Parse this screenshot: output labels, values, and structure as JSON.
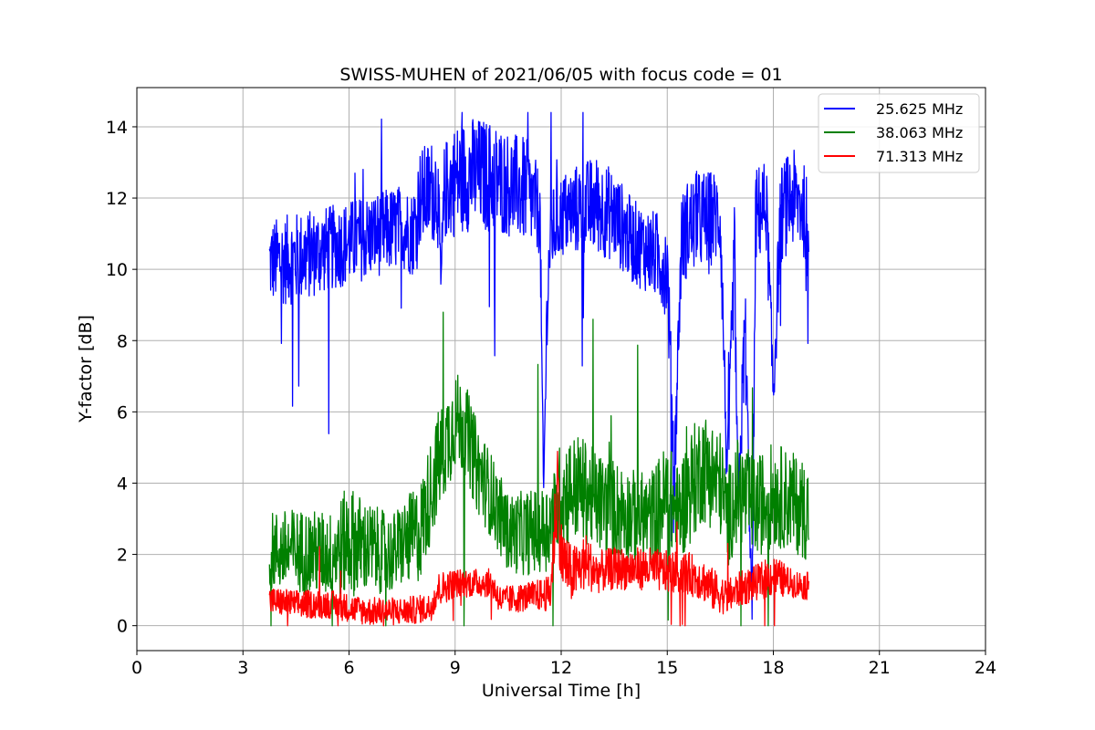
{
  "chart_data": {
    "type": "line",
    "title": "SWISS-MUHEN of 2021/06/05 with focus code = 01",
    "xlabel": "Universal Time [h]",
    "ylabel": "Y-factor [dB]",
    "xlim": [
      0,
      24
    ],
    "ylim": [
      -0.7,
      15.1
    ],
    "xticks": [
      0,
      3,
      6,
      9,
      12,
      15,
      18,
      21,
      24
    ],
    "yticks": [
      0,
      2,
      4,
      6,
      8,
      10,
      12,
      14
    ],
    "grid": true,
    "legend_position": "top-right",
    "series": [
      {
        "name": "25.625 MHz",
        "color": "#0000ff",
        "x": [
          3.75,
          4.5,
          5.5,
          6.5,
          7.5,
          7.8,
          8.0,
          8.5,
          8.6,
          8.7,
          9.0,
          9.5,
          10.0,
          10.5,
          11.0,
          11.4,
          11.5,
          11.6,
          11.7,
          12.0,
          12.5,
          13.0,
          13.5,
          14.0,
          14.5,
          14.8,
          15.0,
          15.2,
          15.4,
          15.6,
          16.0,
          16.5,
          16.7,
          16.9,
          17.0,
          17.2,
          17.4,
          17.5,
          17.8,
          18.0,
          18.2,
          18.5,
          18.8,
          19.0
        ],
        "y": [
          10.2,
          10.3,
          10.6,
          10.9,
          11.2,
          11.0,
          12.0,
          12.3,
          9.5,
          12.2,
          12.5,
          12.7,
          12.6,
          12.4,
          12.2,
          11.6,
          3.5,
          9.0,
          11.0,
          11.5,
          11.7,
          11.8,
          11.5,
          10.8,
          10.5,
          10.3,
          10.0,
          4.2,
          10.8,
          11.2,
          11.4,
          11.5,
          4.0,
          10.5,
          3.0,
          8.5,
          0.3,
          11.5,
          11.8,
          6.5,
          11.5,
          12.0,
          11.8,
          11.3
        ],
        "spread": [
          1.2,
          1.3,
          1.2,
          1.2,
          1.2,
          1.2,
          1.4,
          1.5,
          1.0,
          1.4,
          1.6,
          1.6,
          1.6,
          1.5,
          1.5,
          1.2,
          0.8,
          1.2,
          1.2,
          1.2,
          1.3,
          1.4,
          1.3,
          1.2,
          1.2,
          1.3,
          1.4,
          1.0,
          1.3,
          1.4,
          1.4,
          1.3,
          1.0,
          1.5,
          1.0,
          1.5,
          0.6,
          1.4,
          1.3,
          1.0,
          1.4,
          1.4,
          1.4,
          1.2
        ]
      },
      {
        "name": "38.063 MHz",
        "color": "#008000",
        "x": [
          3.75,
          4.5,
          5.5,
          6.0,
          6.5,
          7.2,
          7.5,
          8.0,
          8.5,
          9.0,
          9.3,
          9.6,
          10.0,
          10.5,
          11.0,
          11.5,
          11.8,
          12.0,
          12.5,
          13.0,
          13.5,
          14.0,
          14.5,
          15.0,
          15.3,
          15.6,
          16.0,
          16.5,
          16.7,
          17.0,
          17.5,
          18.0,
          18.5,
          19.0
        ],
        "y": [
          2.1,
          2.1,
          2.0,
          2.4,
          2.2,
          2.0,
          2.3,
          2.6,
          4.5,
          5.8,
          5.5,
          4.5,
          3.7,
          2.6,
          2.6,
          2.7,
          3.0,
          3.7,
          3.9,
          3.5,
          3.3,
          3.1,
          3.0,
          3.6,
          3.1,
          3.8,
          4.5,
          4.0,
          3.0,
          3.8,
          3.3,
          3.7,
          3.5,
          3.2
        ],
        "spread": [
          1.1,
          1.2,
          1.2,
          1.6,
          1.3,
          1.1,
          1.2,
          1.4,
          1.5,
          1.4,
          1.3,
          1.3,
          1.2,
          1.1,
          1.2,
          1.2,
          1.4,
          1.6,
          1.5,
          1.4,
          1.4,
          1.3,
          1.3,
          1.6,
          1.4,
          1.6,
          1.6,
          1.5,
          1.4,
          1.5,
          1.4,
          1.5,
          1.4,
          1.4
        ]
      },
      {
        "name": "71.313 MHz",
        "color": "#ff0000",
        "x": [
          3.75,
          4.5,
          5.5,
          6.5,
          7.5,
          8.3,
          8.5,
          9.0,
          10.0,
          10.3,
          11.0,
          11.7,
          11.9,
          12.0,
          12.3,
          12.7,
          13.0,
          13.5,
          14.0,
          14.5,
          15.0,
          15.5,
          16.0,
          16.3,
          16.7,
          17.0,
          17.5,
          18.0,
          18.5,
          19.0
        ],
        "y": [
          0.7,
          0.6,
          0.6,
          0.4,
          0.4,
          0.5,
          1.0,
          1.2,
          1.2,
          0.7,
          0.8,
          0.9,
          4.0,
          2.0,
          1.4,
          1.8,
          1.5,
          1.6,
          1.6,
          1.6,
          1.5,
          1.5,
          1.3,
          1.0,
          0.8,
          1.0,
          1.2,
          1.4,
          1.2,
          1.1
        ],
        "spread": [
          0.4,
          0.4,
          0.4,
          0.4,
          0.4,
          0.4,
          0.5,
          0.4,
          0.4,
          0.4,
          0.4,
          0.5,
          1.5,
          1.0,
          0.8,
          0.8,
          0.6,
          0.6,
          0.6,
          0.6,
          0.6,
          0.6,
          0.6,
          0.6,
          0.5,
          0.5,
          0.5,
          0.6,
          0.4,
          0.4
        ]
      }
    ]
  }
}
